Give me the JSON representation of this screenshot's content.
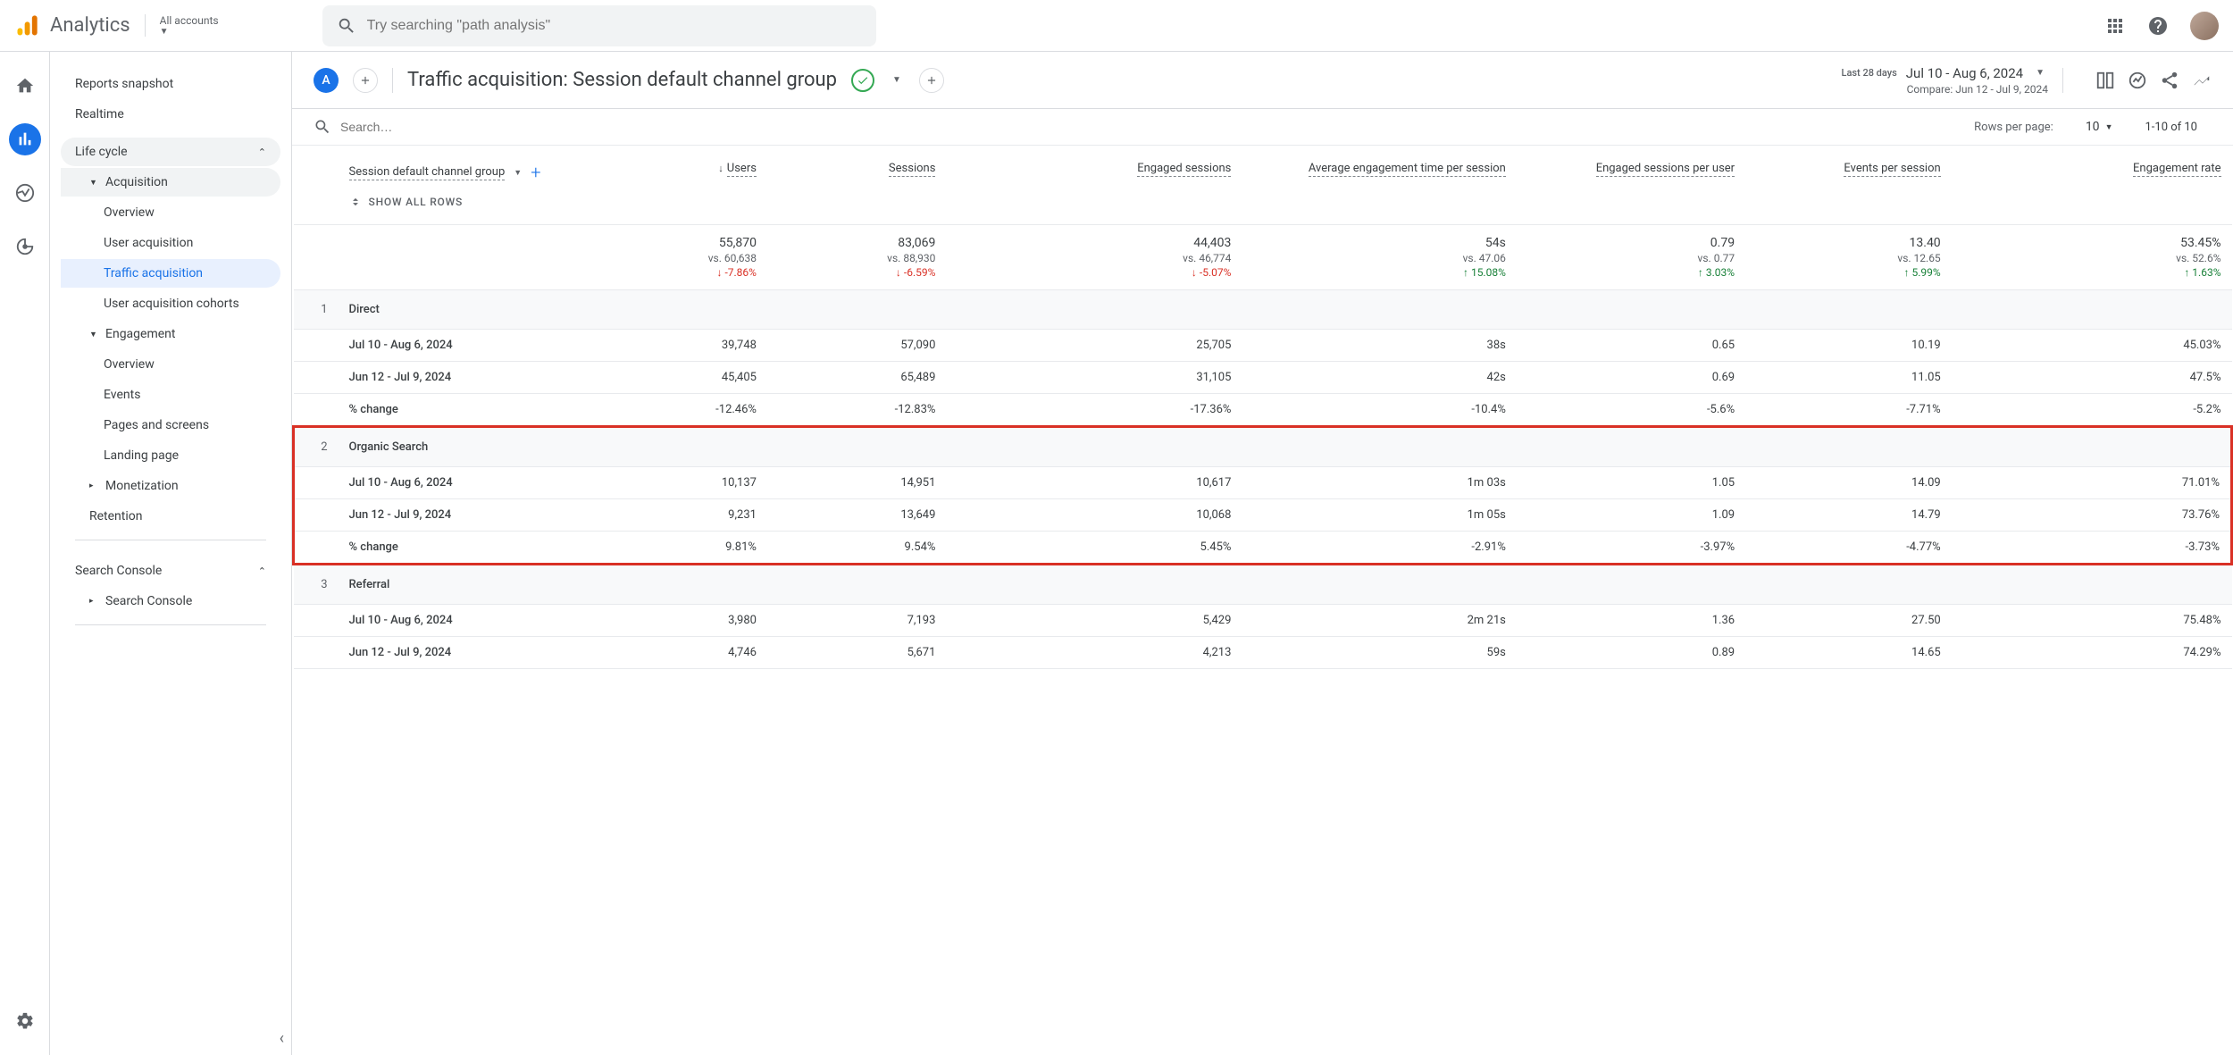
{
  "app": {
    "name": "Analytics",
    "account_label": "All accounts"
  },
  "search": {
    "placeholder": "Try searching \"path analysis\""
  },
  "sidebar": {
    "snapshot": "Reports snapshot",
    "realtime": "Realtime",
    "lifecycle": "Life cycle",
    "acquisition": "Acquisition",
    "acq_overview": "Overview",
    "acq_user": "User acquisition",
    "acq_traffic": "Traffic acquisition",
    "acq_cohorts": "User acquisition cohorts",
    "engagement": "Engagement",
    "eng_overview": "Overview",
    "eng_events": "Events",
    "eng_pages": "Pages and screens",
    "eng_landing": "Landing page",
    "monetization": "Monetization",
    "retention": "Retention",
    "search_console_section": "Search Console",
    "search_console": "Search Console"
  },
  "header": {
    "title": "Traffic acquisition: Session default channel group",
    "date_label": "Last 28 days",
    "date_range": "Jul 10 - Aug 6, 2024",
    "compare": "Compare: Jun 12 - Jul 9, 2024"
  },
  "table": {
    "search_placeholder": "Search…",
    "rows_label": "Rows per page:",
    "rows_value": "10",
    "range": "1-10 of 10",
    "dimension": "Session default channel group",
    "show_all": "SHOW ALL ROWS",
    "columns": [
      "Users",
      "Sessions",
      "Engaged sessions",
      "Average engagement time per session",
      "Engaged sessions per user",
      "Events per session",
      "Engagement rate"
    ],
    "totals": {
      "vals": [
        "55,870",
        "83,069",
        "44,403",
        "54s",
        "0.79",
        "13.40",
        "53.45%"
      ],
      "vs": [
        "vs. 60,638",
        "vs. 88,930",
        "vs. 46,774",
        "vs. 47.06",
        "vs. 0.77",
        "vs. 12.65",
        "vs. 52.6%"
      ],
      "ch": [
        "-7.86%",
        "-6.59%",
        "-5.07%",
        "15.08%",
        "3.03%",
        "5.99%",
        "1.63%"
      ],
      "dir": [
        "down",
        "down",
        "down",
        "up",
        "up",
        "up",
        "up"
      ]
    },
    "period_a": "Jul 10 - Aug 6, 2024",
    "period_b": "Jun 12 - Jul 9, 2024",
    "pct_change": "% change",
    "groups": [
      {
        "n": "1",
        "name": "Direct",
        "highlight": false,
        "a": [
          "39,748",
          "57,090",
          "25,705",
          "38s",
          "0.65",
          "10.19",
          "45.03%"
        ],
        "b": [
          "45,405",
          "65,489",
          "31,105",
          "42s",
          "0.69",
          "11.05",
          "47.5%"
        ],
        "c": [
          "-12.46%",
          "-12.83%",
          "-17.36%",
          "-10.4%",
          "-5.6%",
          "-7.71%",
          "-5.2%"
        ]
      },
      {
        "n": "2",
        "name": "Organic Search",
        "highlight": true,
        "a": [
          "10,137",
          "14,951",
          "10,617",
          "1m 03s",
          "1.05",
          "14.09",
          "71.01%"
        ],
        "b": [
          "9,231",
          "13,649",
          "10,068",
          "1m 05s",
          "1.09",
          "14.79",
          "73.76%"
        ],
        "c": [
          "9.81%",
          "9.54%",
          "5.45%",
          "-2.91%",
          "-3.97%",
          "-4.77%",
          "-3.73%"
        ]
      },
      {
        "n": "3",
        "name": "Referral",
        "highlight": false,
        "a": [
          "3,980",
          "7,193",
          "5,429",
          "2m 21s",
          "1.36",
          "27.50",
          "75.48%"
        ],
        "b": [
          "4,746",
          "5,671",
          "4,213",
          "59s",
          "0.89",
          "14.65",
          "74.29%"
        ],
        "c": [
          "",
          "",
          "",
          "",
          "",
          "",
          ""
        ]
      }
    ]
  },
  "colors": {
    "accent": "#1a73e8",
    "green": "#188038",
    "red": "#d93025",
    "highlight_border": "#d93025"
  }
}
